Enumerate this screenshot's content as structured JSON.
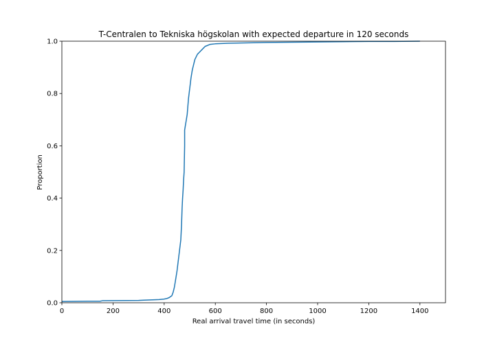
{
  "chart_data": {
    "type": "line",
    "title": "T-Centralen to Tekniska högskolan with expected departure in 120 seconds",
    "xlabel": "Real arrival travel time (in seconds)",
    "ylabel": "Proportion",
    "xlim": [
      0,
      1500
    ],
    "ylim": [
      0,
      1.0
    ],
    "xticks": [
      0,
      200,
      400,
      600,
      800,
      1000,
      1200,
      1400
    ],
    "yticks": [
      0.0,
      0.2,
      0.4,
      0.6,
      0.8,
      1.0
    ],
    "ytick_labels": [
      "0.0",
      "0.2",
      "0.4",
      "0.6",
      "0.8",
      "1.0"
    ],
    "grid": false,
    "color": "#1f77b4",
    "series": [
      {
        "x": [
          0,
          100,
          150,
          160,
          300,
          320,
          380,
          400,
          410,
          420,
          430,
          435,
          440,
          445,
          450,
          455,
          460,
          465,
          468,
          470,
          472,
          474,
          476,
          478,
          480,
          480,
          485,
          490,
          495,
          500,
          505,
          510,
          515,
          520,
          530,
          540,
          550,
          560,
          580,
          600,
          650,
          700,
          800,
          900,
          1000,
          1100,
          1200,
          1300,
          1400
        ],
        "y": [
          0.005,
          0.006,
          0.006,
          0.008,
          0.009,
          0.01,
          0.012,
          0.014,
          0.016,
          0.02,
          0.027,
          0.04,
          0.06,
          0.09,
          0.12,
          0.16,
          0.2,
          0.24,
          0.3,
          0.36,
          0.4,
          0.43,
          0.47,
          0.5,
          0.6,
          0.66,
          0.69,
          0.72,
          0.78,
          0.82,
          0.86,
          0.89,
          0.91,
          0.93,
          0.95,
          0.96,
          0.97,
          0.98,
          0.988,
          0.99,
          0.992,
          0.993,
          0.995,
          0.996,
          0.997,
          0.998,
          0.999,
          0.999,
          1.0
        ]
      }
    ]
  }
}
